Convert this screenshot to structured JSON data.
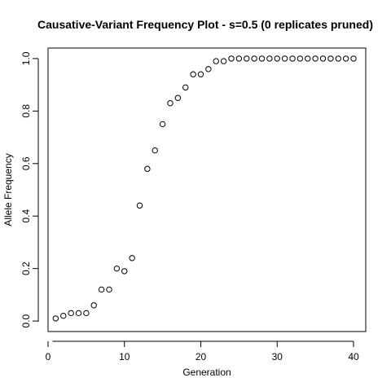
{
  "chart_data": {
    "type": "scatter",
    "title": "Causative-Variant Frequency Plot - s=0.5 (0 replicates pruned)",
    "xlabel": "Generation",
    "ylabel": "Allele Frequency",
    "xlim": [
      0,
      41.6
    ],
    "ylim": [
      -0.04,
      1.04
    ],
    "grid": false,
    "legend": "none",
    "xticks": [
      0,
      10,
      20,
      30,
      40
    ],
    "yticks": [
      0.0,
      0.2,
      0.4,
      0.6,
      0.8,
      1.0
    ],
    "xtick_labels": [
      "0",
      "10",
      "20",
      "30",
      "40"
    ],
    "ytick_labels": [
      "0.0",
      "0.2",
      "0.4",
      "0.6",
      "0.8",
      "1.0"
    ],
    "series": [
      {
        "name": "allele-frequency",
        "x": [
          1,
          2,
          3,
          4,
          5,
          6,
          7,
          8,
          9,
          10,
          11,
          12,
          13,
          14,
          15,
          16,
          17,
          18,
          19,
          20,
          21,
          22,
          23,
          24,
          25,
          26,
          27,
          28,
          29,
          30,
          31,
          32,
          33,
          34,
          35,
          36,
          37,
          38,
          39,
          40
        ],
        "y": [
          0.01,
          0.02,
          0.03,
          0.03,
          0.03,
          0.06,
          0.12,
          0.12,
          0.2,
          0.19,
          0.24,
          0.44,
          0.58,
          0.65,
          0.75,
          0.83,
          0.85,
          0.89,
          0.94,
          0.94,
          0.96,
          0.99,
          0.99,
          1.0,
          1.0,
          1.0,
          1.0,
          1.0,
          1.0,
          1.0,
          1.0,
          1.0,
          1.0,
          1.0,
          1.0,
          1.0,
          1.0,
          1.0,
          1.0,
          1.0
        ]
      }
    ]
  }
}
